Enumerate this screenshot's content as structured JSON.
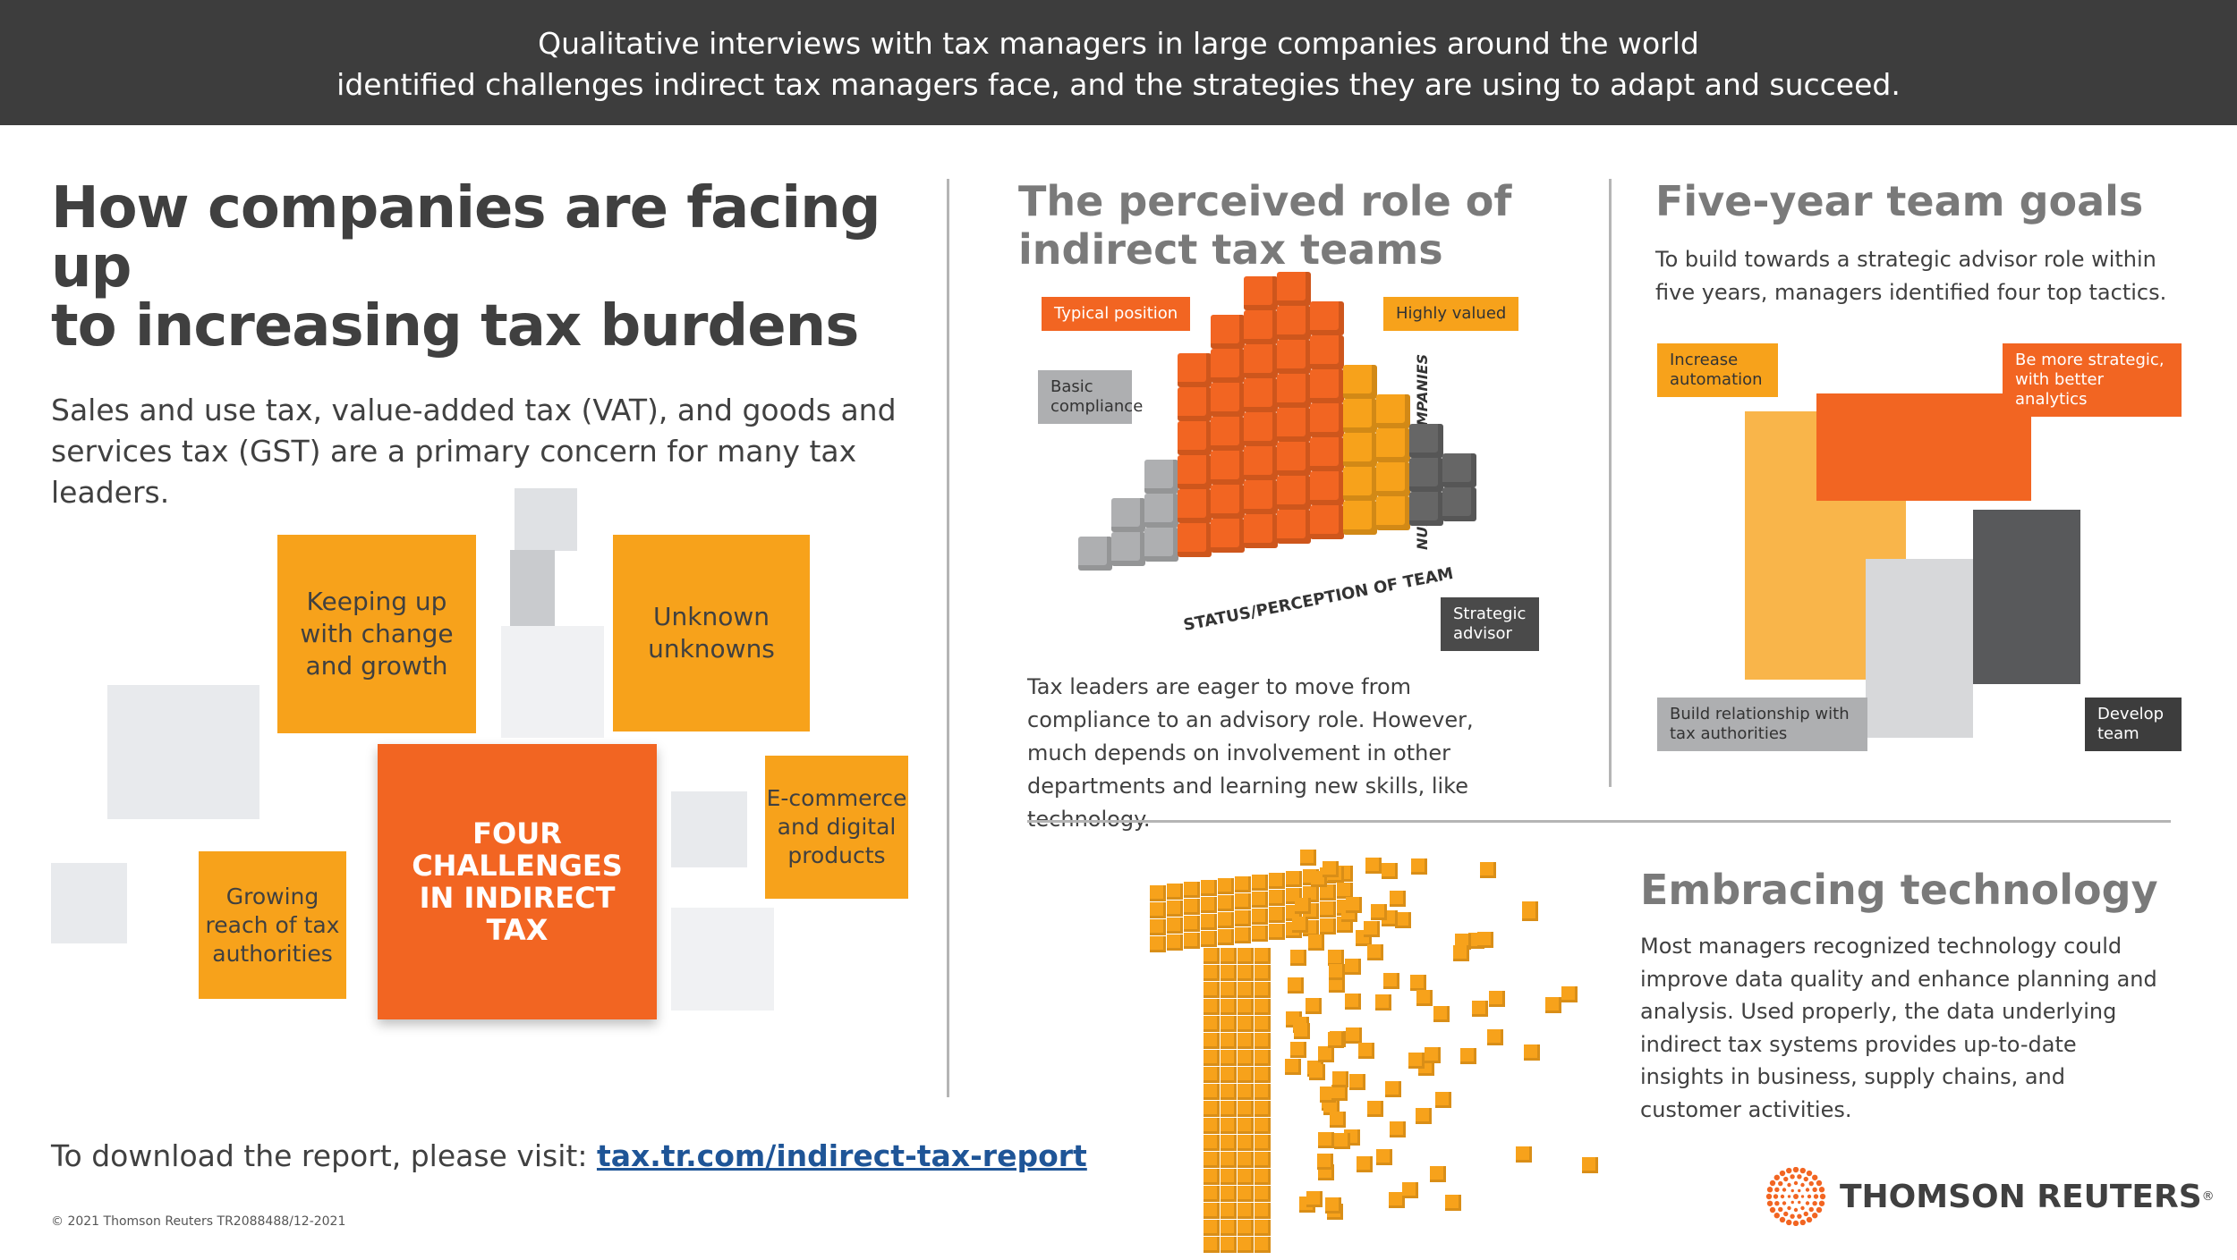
{
  "header": {
    "line1": "Qualitative interviews with tax managers in large companies around the world",
    "line2": "identified challenges indirect tax managers face, and the strategies they are using to adapt and succeed."
  },
  "left": {
    "title_line1": "How companies are facing up",
    "title_line2": "to increasing tax burdens",
    "intro_line1": "Sales and use tax, value-added tax (VAT), and goods and",
    "intro_line2": "services tax (GST) are a primary concern for many tax leaders.",
    "center_label": "FOUR CHALLENGES IN INDIRECT TAX",
    "challenges": [
      "Keeping up with change and growth",
      "Unknown unknowns",
      "E-commerce and digital products",
      "Growing reach of tax authorities"
    ],
    "download_text": "To download the report, please visit: ",
    "download_link": "tax.tr.com/indirect-tax-report",
    "copyright": "© 2021 Thomson Reuters TR2088488/12-2021"
  },
  "role": {
    "title_line1": "The perceived role of",
    "title_line2": "indirect tax teams",
    "callouts": {
      "typical": "Typical position",
      "highly": "Highly valued",
      "basic": "Basic compliance",
      "strategic": "Strategic advisor"
    },
    "x_axis": "STATUS/PERCEPTION OF TEAM",
    "y_axis": "NUMBER OF COMPANIES",
    "body": "Tax leaders are eager to move from compliance to an advisory role. However, much depends on involvement in other departments and learning new skills, like technology."
  },
  "goals": {
    "title": "Five-year team goals",
    "body": "To build towards a strategic advisor role within five years, managers identified four top tactics.",
    "callouts": {
      "automation": "Increase automation",
      "strategic": "Be more strategic, with better analytics",
      "relationship": "Build relationship with tax authorities",
      "develop": "Develop team"
    }
  },
  "tech": {
    "title": "Embracing technology",
    "body": "Most managers recognized technology could improve data quality and enhance planning and analysis. Used properly, the data underlying indirect tax systems provides up-to-date insights in business, supply chains, and customer activities."
  },
  "brand": {
    "name": "THOMSON REUTERS",
    "mark": "®"
  },
  "colors": {
    "orange": "#f26522",
    "amber": "#f7a21b",
    "dark": "#3d3d3d",
    "grey": "#aeafb1",
    "link": "#1f5597"
  }
}
